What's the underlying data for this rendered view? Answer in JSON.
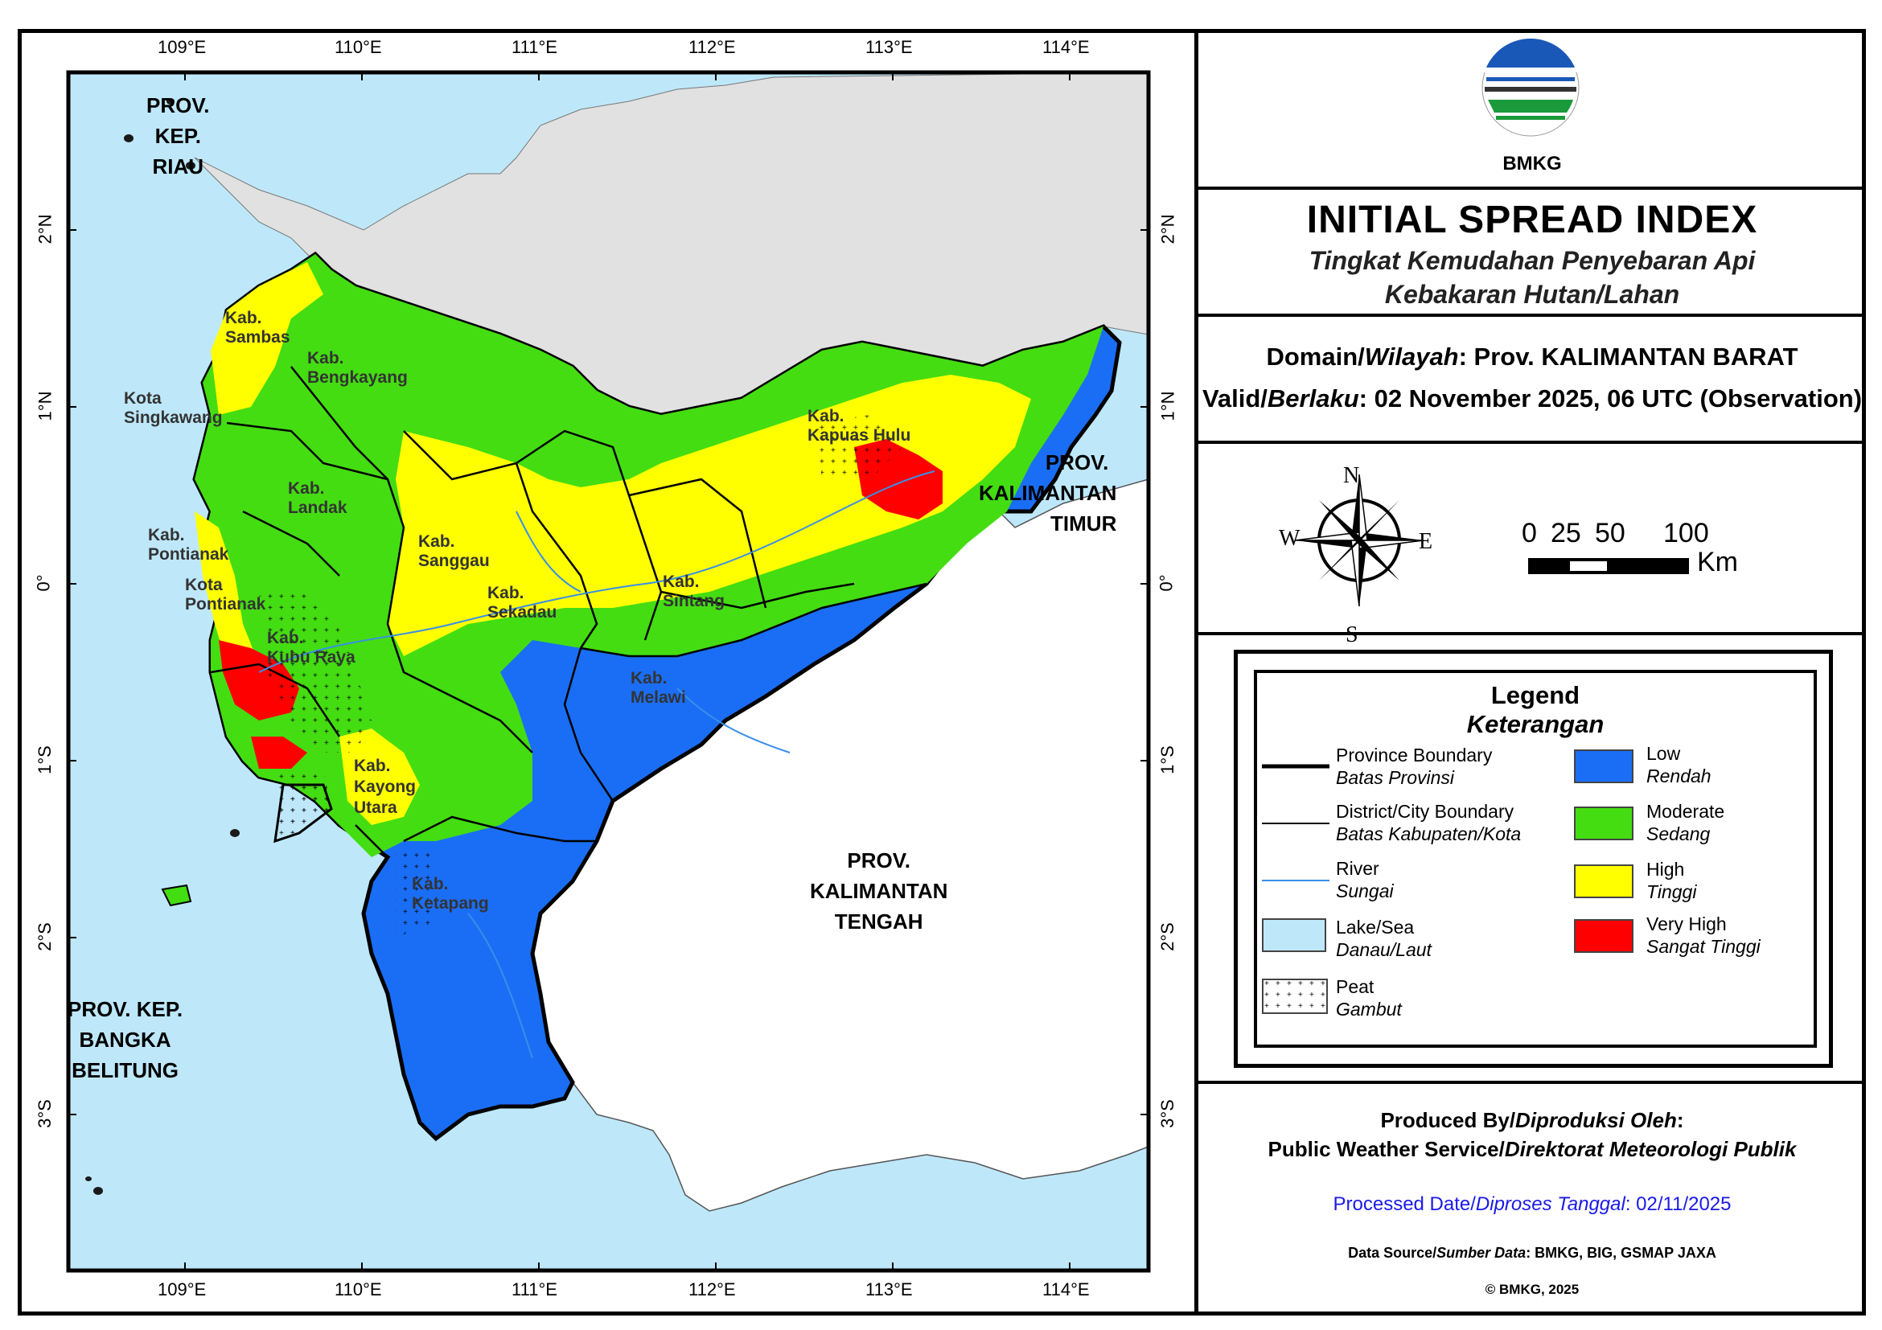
{
  "header": {
    "logo_text": "BMKG",
    "title": "INITIAL SPREAD INDEX",
    "subtitle_1": "Tingkat Kemudahan Penyebaran Api",
    "subtitle_2": "Kebakaran Hutan/Lahan"
  },
  "domain": {
    "label_a": "Domain/",
    "label_b": "Wilayah",
    "value": ": Prov. KALIMANTAN BARAT",
    "valid_a": "Valid/",
    "valid_b": "Berlaku",
    "valid_value": ": 02 November 2025, 06 UTC (Observation)"
  },
  "compass": {
    "n": "N",
    "s": "S",
    "e": "E",
    "w": "W"
  },
  "scale": {
    "ticks": [
      "0",
      "25",
      "50",
      "100"
    ],
    "unit": "Km"
  },
  "legend": {
    "title": "Legend",
    "subtitle": "Keterangan",
    "lines": [
      {
        "label": "Province Boundary",
        "label_id": "Batas Provinsi"
      },
      {
        "label": "District/City Boundary",
        "label_id": "Batas Kabupaten/Kota"
      },
      {
        "label": "River",
        "label_id": "Sungai"
      },
      {
        "label": "Lake/Sea",
        "label_id": "Danau/Laut"
      },
      {
        "label": "Peat",
        "label_id": "Gambut"
      }
    ],
    "classes": [
      {
        "label": "Low",
        "label_id": "Rendah",
        "color": "#1a6ef5"
      },
      {
        "label": "Moderate",
        "label_id": "Sedang",
        "color": "#44dd11"
      },
      {
        "label": "High",
        "label_id": "Tinggi",
        "color": "#ffff00"
      },
      {
        "label": "Very High",
        "label_id": "Sangat Tinggi",
        "color": "#ff0000"
      }
    ]
  },
  "footer": {
    "produced_a": "Produced By/",
    "produced_b": "Diproduksi Oleh",
    "produced_c": ":",
    "service_a": "Public Weather Service/",
    "service_b": "Direktorat Meteorologi Publik",
    "processed_a": "Processed Date/",
    "processed_b": "Diproses Tanggal",
    "processed_c": ": 02/11/2025",
    "source_a": "Data Source/",
    "source_b": "Sumber Data",
    "source_c": ": BMKG, BIG, GSMAP JAXA",
    "copyright": "© BMKG, 2025"
  },
  "map": {
    "lon_ticks": [
      "109°E",
      "110°E",
      "111°E",
      "112°E",
      "113°E",
      "114°E"
    ],
    "lat_ticks": [
      "2°N",
      "1°N",
      "0°",
      "1°S",
      "2°S",
      "3°S"
    ],
    "provinces": [
      {
        "lines": [
          "PROV.",
          "KEP.",
          "RIAU"
        ]
      },
      {
        "lines": [
          "PROV.",
          "KALIMANTAN",
          "TIMUR"
        ]
      },
      {
        "lines": [
          "PROV.",
          "KALIMANTAN",
          "TENGAH"
        ]
      },
      {
        "lines": [
          "PROV. KEP.",
          "BANGKA",
          "BELITUNG"
        ]
      }
    ],
    "districts": [
      "Kab.",
      "Sambas",
      "Kab.",
      "Bengkayang",
      "Kota",
      "Singkawang",
      "Kab.",
      "Landak",
      "Kab.",
      "Pontianak",
      "Kota",
      "Pontianak",
      "Kab.",
      "Kubu Raya",
      "Kab.",
      "Sanggau",
      "Kab.",
      "Sekadau",
      "Kab.",
      "Sintang",
      "Kab.",
      "Kapuas Hulu",
      "Kab.",
      "Melawi",
      "Kab.",
      "Kayong",
      "Utara",
      "Kab.",
      "Ketapang"
    ],
    "colors": {
      "sea": "#bee8fa",
      "land_other": "#e1e1e1",
      "low": "#1a6ef5",
      "moderate": "#44dd11",
      "high": "#ffff00",
      "very_high": "#ff0000",
      "river": "#3a8ee8"
    }
  }
}
